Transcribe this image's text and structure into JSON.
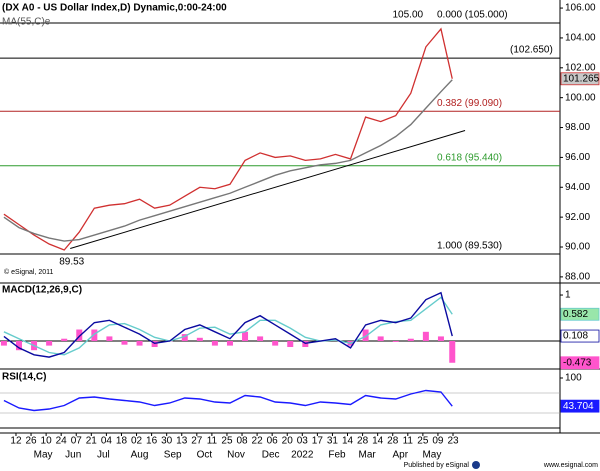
{
  "chart_data": {
    "type": "financial",
    "title": "(DX A0 - US Dollar Index,D) Dynamic,0:00-24:00",
    "x": [
      -0.8,
      0.2,
      1.2,
      2.2,
      3.2,
      4.2,
      5.2,
      6.2,
      7.2,
      8.2,
      9.2,
      10.2,
      11.2,
      12.2,
      13.2,
      14.2,
      15.2,
      16.2,
      17.2,
      18.2,
      19.2,
      20.2,
      21.2,
      22.2,
      23.2,
      24.2,
      25.2,
      26.2,
      27.2,
      28.2,
      28.95
    ],
    "xlim": [
      -1.06,
      36.1
    ],
    "xticks": [
      {
        "value": 0,
        "label": "12"
      },
      {
        "value": 1,
        "label": "26"
      },
      {
        "value": 2,
        "label": "10"
      },
      {
        "value": 3,
        "label": "24"
      },
      {
        "value": 4,
        "label": "07"
      },
      {
        "value": 5,
        "label": "21"
      },
      {
        "value": 6,
        "label": "04"
      },
      {
        "value": 7,
        "label": "18"
      },
      {
        "value": 8,
        "label": "02"
      },
      {
        "value": 9,
        "label": "16"
      },
      {
        "value": 10,
        "label": "30"
      },
      {
        "value": 11,
        "label": "13"
      },
      {
        "value": 12,
        "label": "27"
      },
      {
        "value": 13,
        "label": "11"
      },
      {
        "value": 14,
        "label": "25"
      },
      {
        "value": 15,
        "label": "08"
      },
      {
        "value": 16,
        "label": "22"
      },
      {
        "value": 17,
        "label": "06"
      },
      {
        "value": 18,
        "label": "20"
      },
      {
        "value": 19,
        "label": "03"
      },
      {
        "value": 20,
        "label": "17"
      },
      {
        "value": 21,
        "label": "31"
      },
      {
        "value": 22,
        "label": "14"
      },
      {
        "value": 23,
        "label": "28"
      },
      {
        "value": 24,
        "label": "14"
      },
      {
        "value": 25,
        "label": "28"
      },
      {
        "value": 26,
        "label": "11"
      },
      {
        "value": 27,
        "label": "25"
      },
      {
        "value": 28,
        "label": "09"
      },
      {
        "value": 29,
        "label": "23"
      }
    ],
    "months": [
      {
        "value": 1.8,
        "label": "May"
      },
      {
        "value": 3.8,
        "label": "Jun"
      },
      {
        "value": 5.8,
        "label": "Jul"
      },
      {
        "value": 8.2,
        "label": "Aug"
      },
      {
        "value": 10.4,
        "label": "Sep"
      },
      {
        "value": 12.5,
        "label": "Oct"
      },
      {
        "value": 14.6,
        "label": "Nov"
      },
      {
        "value": 16.9,
        "label": "Dec"
      },
      {
        "value": 19.0,
        "label": "2022"
      },
      {
        "value": 21.3,
        "label": "Feb"
      },
      {
        "value": 23.3,
        "label": "Mar"
      },
      {
        "value": 25.5,
        "label": "Apr"
      },
      {
        "value": 27.6,
        "label": "May"
      }
    ],
    "panels": [
      {
        "type": "price",
        "ylim": [
          87.59,
          106.54
        ],
        "yticks": [
          {
            "value": 106,
            "label": "106.00"
          },
          {
            "value": 104,
            "label": "104.00"
          },
          {
            "value": 102,
            "label": "102.00"
          },
          {
            "value": 100,
            "label": "100.00"
          },
          {
            "value": 98,
            "label": "98.00"
          },
          {
            "value": 96,
            "label": "96.00"
          },
          {
            "value": 94,
            "label": "94.00"
          },
          {
            "value": 92,
            "label": "92.00"
          },
          {
            "value": 90,
            "label": "90.00"
          },
          {
            "value": 88,
            "label": "88.00"
          }
        ],
        "series": [
          {
            "type": "line",
            "color": "#d03030",
            "box_color": "#c8c8c8",
            "values": [
              92.2,
              91.5,
              90.8,
              90.2,
              89.8,
              91.0,
              92.6,
              92.8,
              92.9,
              93.2,
              92.6,
              92.8,
              93.4,
              94.0,
              93.9,
              94.2,
              95.8,
              96.3,
              96.0,
              96.1,
              95.8,
              95.9,
              96.2,
              95.9,
              98.7,
              98.4,
              98.8,
              100.3,
              103.4,
              104.6,
              101.265
            ]
          },
          {
            "name": "MA(55,C)e",
            "type": "line",
            "color": "#777777",
            "values": [
              92.0,
              91.3,
              90.9,
              90.6,
              90.4,
              90.5,
              90.8,
              91.1,
              91.4,
              91.8,
              92.1,
              92.4,
              92.7,
              93.0,
              93.3,
              93.6,
              94.0,
              94.4,
              94.8,
              95.1,
              95.3,
              95.5,
              95.6,
              95.8,
              96.3,
              96.8,
              97.4,
              98.2,
              99.3,
              100.4,
              101.2
            ]
          }
        ],
        "trendline": {
          "x": [
            3.6,
            29.8
          ],
          "values": [
            89.9,
            97.8
          ],
          "color": "#000000"
        },
        "levels": [
          {
            "value": 105,
            "label": "0.000 (105.000)",
            "color": "#000000"
          },
          {
            "value": 102.65,
            "label": "(102.650)",
            "color": "#000000"
          },
          {
            "value": 99.09,
            "label": "0.382 (99.090)",
            "color": "#b22222"
          },
          {
            "value": 95.44,
            "label": "0.618 (95.440)",
            "color": "#2e9b2e"
          },
          {
            "value": 89.53,
            "label": "1.000 (89.530)",
            "color": "#000000"
          }
        ],
        "annotations": [
          {
            "x": 26.0,
            "value": 105,
            "label": "105.00"
          },
          {
            "x": 3.7,
            "value": 89.53,
            "label": "89.53"
          }
        ]
      },
      {
        "type": "indicator",
        "title": "MACD(12,26,9,C)",
        "ylim": [
          -0.587,
          1.24
        ],
        "yticks": [
          1
        ],
        "series": [
          {
            "type": "bar",
            "color": "#ff55cc",
            "box_color": "#ff55cc",
            "values": [
              -0.1,
              -0.2,
              -0.2,
              -0.1,
              0.05,
              0.25,
              0.25,
              0.1,
              -0.08,
              -0.1,
              -0.13,
              0,
              0.15,
              0.07,
              -0.1,
              -0.1,
              0.2,
              0.1,
              -0.1,
              -0.13,
              -0.13,
              0,
              0.03,
              -0.1,
              0.25,
              0.1,
              -0.02,
              0.05,
              0.2,
              0.1,
              -0.473
            ]
          },
          {
            "type": "line",
            "color": "#66cccc",
            "box_color": "#99e6aa",
            "values": [
              0.2,
              0.05,
              -0.1,
              -0.25,
              -0.3,
              -0.15,
              0.15,
              0.35,
              0.38,
              0.25,
              0.08,
              0,
              0.1,
              0.28,
              0.3,
              0.15,
              0.2,
              0.45,
              0.45,
              0.28,
              0.08,
              0,
              0.02,
              -0.05,
              0.1,
              0.35,
              0.42,
              0.45,
              0.7,
              0.95,
              0.582
            ]
          },
          {
            "type": "line",
            "color": "#0a0aa0",
            "box_color": "#ffffff",
            "values": [
              0.1,
              -0.15,
              -0.3,
              -0.35,
              -0.25,
              0.1,
              0.4,
              0.45,
              0.3,
              0.15,
              -0.05,
              0,
              0.25,
              0.35,
              0.2,
              0.05,
              0.4,
              0.55,
              0.35,
              0.15,
              -0.05,
              0,
              0.05,
              -0.15,
              0.35,
              0.45,
              0.4,
              0.5,
              0.9,
              1.05,
              0.108
            ]
          }
        ]
      },
      {
        "type": "indicator",
        "title": "RSI(14,C)",
        "ylim": [
          -8,
          116
        ],
        "yticks": [
          100
        ],
        "levels": [
          70,
          30
        ],
        "series": [
          {
            "type": "line",
            "color": "#1a1aff",
            "box_color": "#1a1aff",
            "values": [
              55,
              40,
              35,
              38,
              45,
              60,
              62,
              58,
              55,
              52,
              45,
              50,
              60,
              58,
              52,
              50,
              65,
              62,
              52,
              50,
              45,
              52,
              50,
              47,
              65,
              60,
              58,
              68,
              75,
              72,
              43.704
            ]
          }
        ]
      }
    ]
  },
  "footer": {
    "copyright": "© eSignal, 2011",
    "publisher": "Published by eSignal",
    "url": "www.esignal.com"
  }
}
